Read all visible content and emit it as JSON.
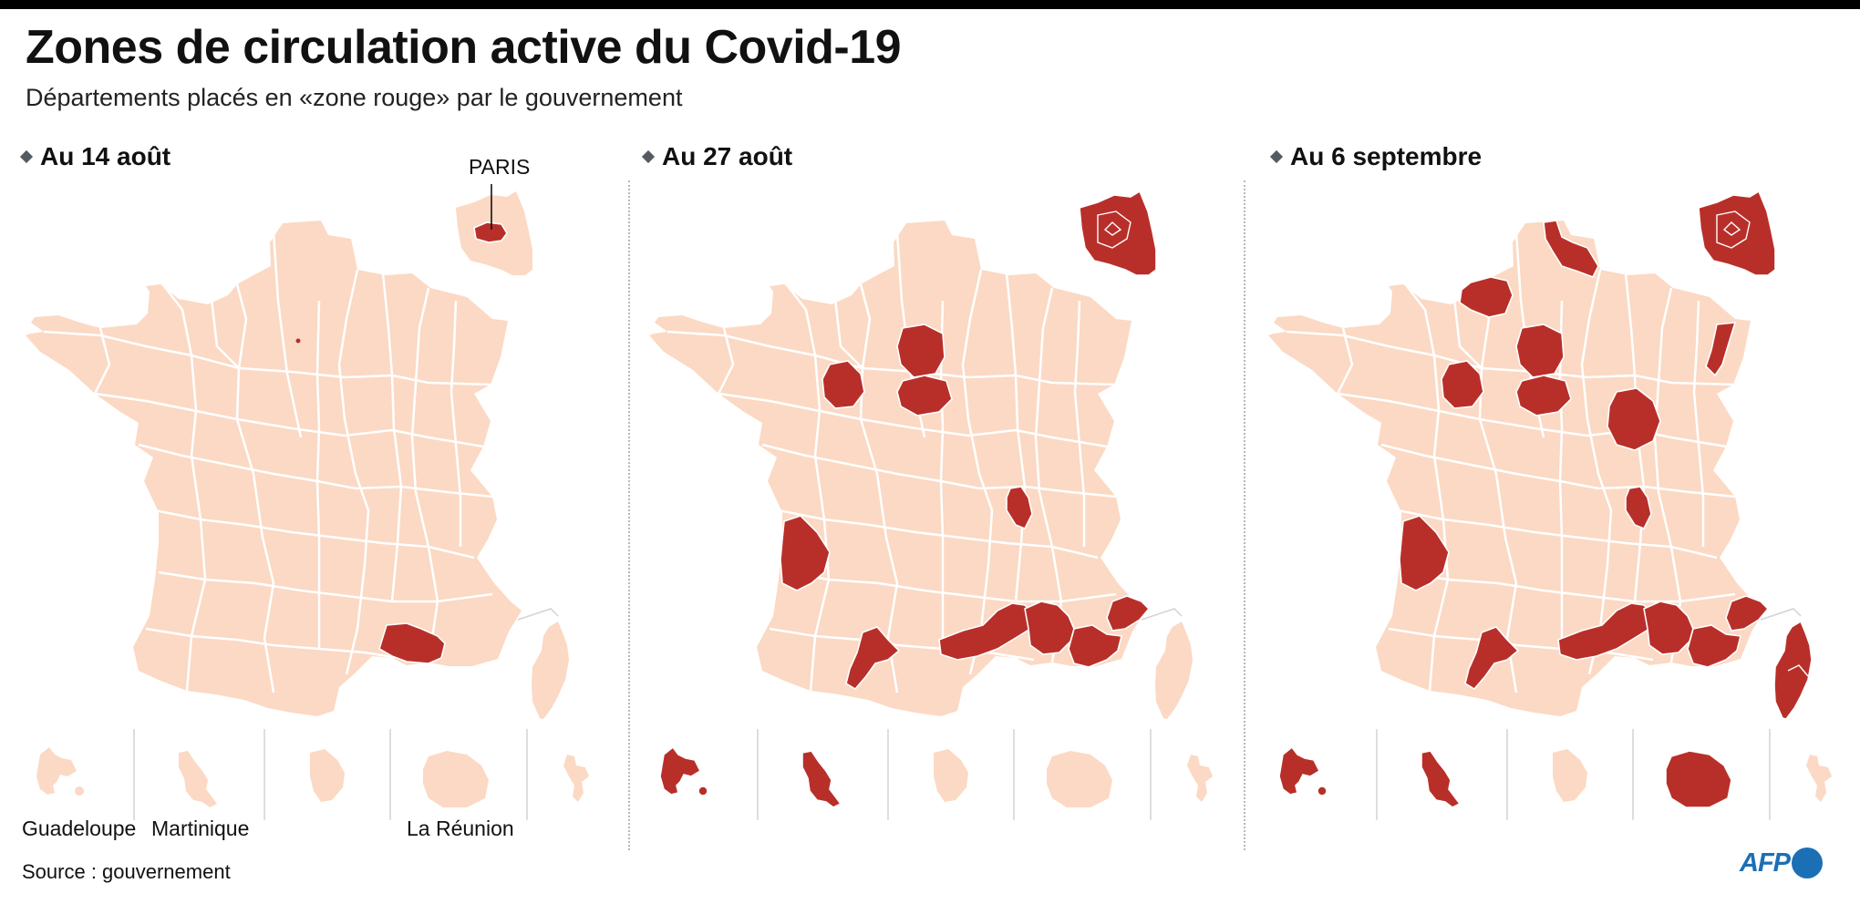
{
  "header": {
    "title": "Zones de circulation active du Covid-19",
    "subtitle": "Départements placés en «zone rouge» par le gouvernement"
  },
  "panels": [
    {
      "label": "Au 14 août",
      "red_zones": [
        "Paris",
        "Bouches-du-Rhône"
      ],
      "overseas_red": []
    },
    {
      "label": "Au 27 août",
      "red_zones": [
        "Paris",
        "Hauts-de-Seine",
        "Seine-Saint-Denis",
        "Val-de-Marne",
        "Val-d'Oise",
        "Essonne",
        "Yvelines",
        "Seine-et-Marne",
        "Sarthe",
        "Loiret",
        "Rhône",
        "Gironde",
        "Haute-Garonne",
        "Hérault",
        "Gard",
        "Bouches-du-Rhône",
        "Vaucluse",
        "Var",
        "Alpes-Maritimes"
      ],
      "overseas_red": [
        "Guadeloupe",
        "Martinique"
      ]
    },
    {
      "label": "Au 6 septembre",
      "red_zones": [
        "Paris",
        "Hauts-de-Seine",
        "Seine-Saint-Denis",
        "Val-de-Marne",
        "Val-d'Oise",
        "Essonne",
        "Yvelines",
        "Seine-et-Marne",
        "Nord",
        "Seine-Maritime",
        "Sarthe",
        "Loiret",
        "Côte-d'Or",
        "Bas-Rhin",
        "Rhône",
        "Gironde",
        "Haute-Garonne",
        "Hérault",
        "Gard",
        "Bouches-du-Rhône",
        "Vaucluse",
        "Var",
        "Alpes-Maritimes",
        "Corse-du-Sud",
        "Haute-Corse"
      ],
      "overseas_red": [
        "Guadeloupe",
        "Martinique",
        "La Réunion"
      ]
    }
  ],
  "inset_label": "PARIS",
  "overseas_labels": {
    "guadeloupe": "Guadeloupe",
    "martinique": "Martinique",
    "reunion": "La Réunion"
  },
  "source": "Source : gouvernement",
  "logo": "AFP",
  "colors": {
    "red_zone": "#b82f2a",
    "department": "#fbd9c4",
    "border": "#ffffff"
  }
}
